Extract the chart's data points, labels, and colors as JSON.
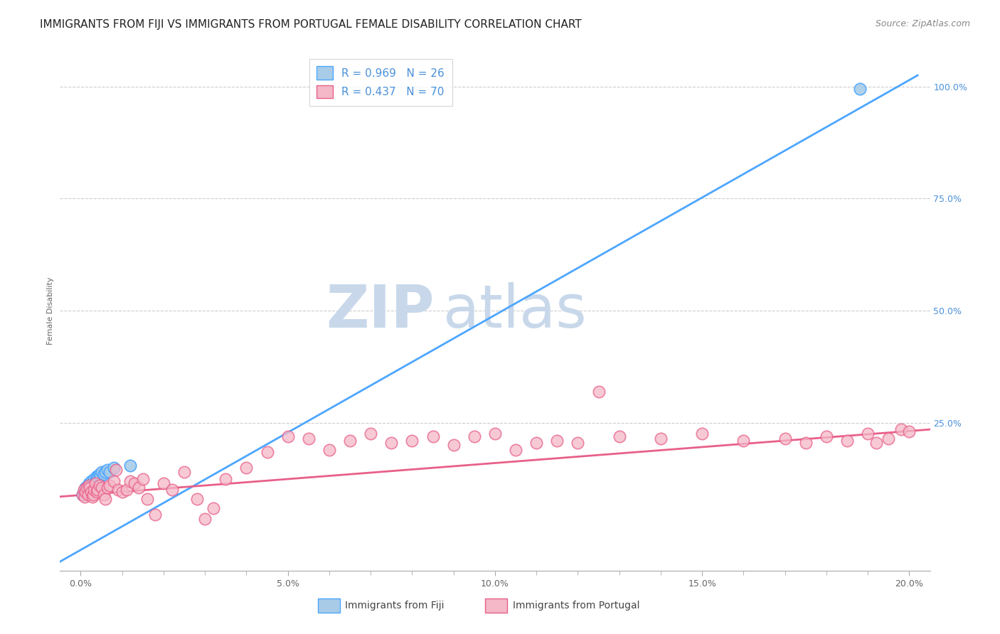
{
  "title": "IMMIGRANTS FROM FIJI VS IMMIGRANTS FROM PORTUGAL FEMALE DISABILITY CORRELATION CHART",
  "source": "Source: ZipAtlas.com",
  "ylabel": "Female Disability",
  "x_tick_labels": [
    "0.0%",
    "",
    "",
    "",
    "",
    "5.0%",
    "",
    "",
    "",
    "",
    "10.0%",
    "",
    "",
    "",
    "",
    "15.0%",
    "",
    "",
    "",
    "",
    "20.0%"
  ],
  "x_tick_vals": [
    0.0,
    1.0,
    2.0,
    3.0,
    4.0,
    5.0,
    6.0,
    7.0,
    8.0,
    9.0,
    10.0,
    11.0,
    12.0,
    13.0,
    14.0,
    15.0,
    16.0,
    17.0,
    18.0,
    19.0,
    20.0
  ],
  "x_major_ticks": [
    0.0,
    5.0,
    10.0,
    15.0,
    20.0
  ],
  "x_major_labels": [
    "0.0%",
    "5.0%",
    "10.0%",
    "15.0%",
    "20.0%"
  ],
  "y_tick_labels": [
    "100.0%",
    "75.0%",
    "50.0%",
    "25.0%"
  ],
  "y_tick_vals": [
    100.0,
    75.0,
    50.0,
    25.0
  ],
  "fiji_color": "#a8cce8",
  "fiji_color_line": "#4da6ff",
  "portugal_color": "#f4b8c8",
  "portugal_color_line": "#e8608a",
  "fiji_R": 0.969,
  "fiji_N": 26,
  "portugal_R": 0.437,
  "portugal_N": 70,
  "legend_label_fiji": "Immigrants from Fiji",
  "legend_label_portugal": "Immigrants from Portugal",
  "watermark_zip": "ZIP",
  "watermark_atlas": "atlas",
  "watermark_color": "#c8d8ea",
  "fiji_scatter_x": [
    0.05,
    0.08,
    0.1,
    0.12,
    0.15,
    0.18,
    0.2,
    0.22,
    0.25,
    0.28,
    0.3,
    0.32,
    0.35,
    0.38,
    0.4,
    0.42,
    0.45,
    0.48,
    0.5,
    0.55,
    0.6,
    0.65,
    0.7,
    0.8,
    1.2,
    18.8
  ],
  "fiji_scatter_y": [
    9.0,
    9.5,
    10.0,
    10.5,
    10.0,
    11.0,
    11.5,
    11.0,
    12.0,
    11.5,
    12.0,
    12.5,
    12.0,
    13.0,
    12.5,
    13.0,
    13.5,
    13.0,
    14.0,
    13.5,
    14.0,
    14.5,
    14.0,
    15.0,
    15.5,
    99.5
  ],
  "portugal_scatter_x": [
    0.05,
    0.08,
    0.1,
    0.12,
    0.15,
    0.18,
    0.2,
    0.22,
    0.25,
    0.28,
    0.3,
    0.32,
    0.35,
    0.38,
    0.4,
    0.45,
    0.5,
    0.55,
    0.6,
    0.65,
    0.7,
    0.8,
    0.85,
    0.9,
    1.0,
    1.1,
    1.2,
    1.3,
    1.4,
    1.5,
    1.6,
    1.8,
    2.0,
    2.2,
    2.5,
    2.8,
    3.0,
    3.2,
    3.5,
    4.0,
    4.5,
    5.0,
    5.5,
    6.0,
    6.5,
    7.0,
    7.5,
    8.0,
    8.5,
    9.0,
    9.5,
    10.0,
    10.5,
    11.0,
    11.5,
    12.0,
    12.5,
    13.0,
    14.0,
    15.0,
    16.0,
    17.0,
    17.5,
    18.0,
    18.5,
    19.0,
    19.2,
    19.5,
    19.8,
    20.0
  ],
  "portugal_scatter_y": [
    9.0,
    10.0,
    8.5,
    9.5,
    10.5,
    9.0,
    11.0,
    10.5,
    9.5,
    8.5,
    9.0,
    10.0,
    11.5,
    9.5,
    10.0,
    11.0,
    10.5,
    9.0,
    8.0,
    10.5,
    11.0,
    12.0,
    14.5,
    10.0,
    9.5,
    10.0,
    12.0,
    11.5,
    10.5,
    12.5,
    8.0,
    4.5,
    11.5,
    10.0,
    14.0,
    8.0,
    3.5,
    6.0,
    12.5,
    15.0,
    18.5,
    22.0,
    21.5,
    19.0,
    21.0,
    22.5,
    20.5,
    21.0,
    22.0,
    20.0,
    22.0,
    22.5,
    19.0,
    20.5,
    21.0,
    20.5,
    32.0,
    22.0,
    21.5,
    22.5,
    21.0,
    21.5,
    20.5,
    22.0,
    21.0,
    22.5,
    20.5,
    21.5,
    23.5,
    23.0
  ],
  "xlim": [
    -0.5,
    20.5
  ],
  "ylim": [
    -8.0,
    108.0
  ],
  "fiji_line_x": [
    -0.5,
    20.2
  ],
  "fiji_line_y": [
    -6.0,
    102.5
  ],
  "portugal_line_x": [
    -0.5,
    20.5
  ],
  "portugal_line_y": [
    8.5,
    23.5
  ],
  "background_color": "#ffffff",
  "grid_color": "#cccccc",
  "title_fontsize": 11,
  "axis_label_fontsize": 8,
  "tick_fontsize": 9,
  "legend_fontsize": 11,
  "source_fontsize": 9
}
